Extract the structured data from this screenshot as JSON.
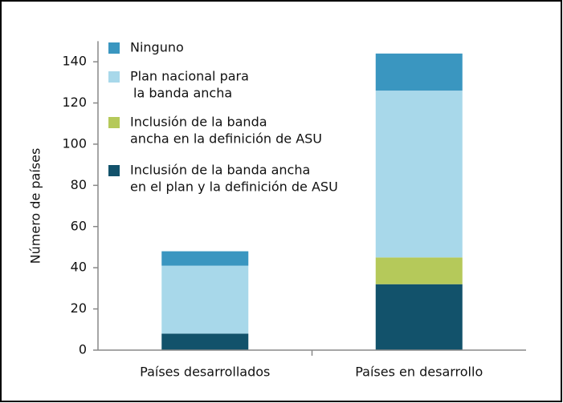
{
  "chart_data": {
    "type": "stacked_bar",
    "y_label": "Número de países",
    "categories": [
      "Países desarrollados",
      "Países en desarrollo"
    ],
    "series": [
      {
        "name": [
          "Inclusión de la banda ancha",
          "en el plan y la definición de ASU"
        ],
        "color": "#12526b",
        "values": [
          8,
          32
        ]
      },
      {
        "name": [
          "Inclusión de la banda",
          "ancha en la definición de ASU"
        ],
        "color": "#b5c95a",
        "values": [
          0,
          13
        ]
      },
      {
        "name": [
          "Plan nacional para",
          "la banda ancha"
        ],
        "color": "#a8d8ea",
        "values": [
          33,
          81
        ]
      },
      {
        "name": [
          "Ninguno"
        ],
        "color": "#3a96c0",
        "values": [
          7,
          18
        ]
      }
    ],
    "ylim": [
      0,
      150
    ],
    "yticks": [
      0,
      20,
      40,
      60,
      80,
      100,
      120,
      140
    ]
  }
}
